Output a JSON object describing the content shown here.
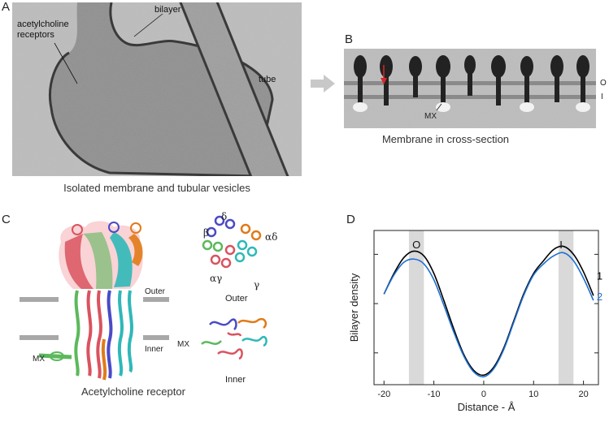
{
  "panels": {
    "a": {
      "label": "A",
      "annotations": {
        "receptors_line1": "acetylcholine",
        "receptors_line2": "receptors",
        "bilayer": "bilayer",
        "tube": "tube"
      },
      "caption": "Isolated membrane and tubular vesicles"
    },
    "b": {
      "label": "B",
      "annotations": {
        "outer": "O",
        "inner": "I",
        "mx": "MX"
      },
      "caption": "Membrane in cross-section"
    },
    "c": {
      "label": "C",
      "annotations": {
        "outer": "Outer",
        "inner": "Inner",
        "mx": "MX",
        "mx_inner": "MX"
      },
      "subunits": {
        "beta": "β",
        "delta": "δ",
        "alpha_delta": "αδ",
        "alpha_gamma": "αγ",
        "gamma": "γ"
      },
      "slice_labels": {
        "outer": "Outer",
        "inner": "Inner"
      },
      "caption": "Acetylcholine receptor"
    },
    "d": {
      "label": "D"
    }
  },
  "colors": {
    "arrow_gray": "#c8c8c8",
    "red_arrow": "#d62828",
    "series_1": "#000000",
    "series_2": "#1f6fd1",
    "shade": "#d9d9d9",
    "subunit_colors": [
      "#4a4ac8",
      "#e07b1a",
      "#2fb8b8",
      "#d9535f",
      "#5cb85c"
    ]
  },
  "chart_data": {
    "type": "line",
    "xlabel": "Distance - Å",
    "ylabel": "Bilayer density",
    "xlim": [
      -22,
      23
    ],
    "ylim": [
      0.15,
      1.12
    ],
    "xticks": [
      -20,
      -10,
      0,
      10,
      20
    ],
    "peak_labels": [
      {
        "text": "O",
        "x": -13.5
      },
      {
        "text": "I",
        "x": 15.5
      }
    ],
    "shaded_bands": [
      [
        -15,
        -12
      ],
      [
        15,
        18
      ]
    ],
    "series": [
      {
        "name": "1",
        "x": [
          -20,
          -18,
          -16,
          -14,
          -12,
          -10,
          -8,
          -6,
          -4,
          -2,
          0,
          2,
          4,
          6,
          8,
          10,
          12,
          14,
          16,
          18,
          20,
          22
        ],
        "y": [
          0.72,
          0.85,
          0.95,
          0.99,
          0.96,
          0.85,
          0.68,
          0.5,
          0.34,
          0.24,
          0.21,
          0.26,
          0.38,
          0.55,
          0.72,
          0.85,
          0.93,
          1.0,
          1.02,
          0.97,
          0.86,
          0.71
        ]
      },
      {
        "name": "2",
        "x": [
          -20,
          -18,
          -16,
          -14,
          -12,
          -10,
          -8,
          -6,
          -4,
          -2,
          0,
          2,
          4,
          6,
          8,
          10,
          12,
          14,
          16,
          18,
          20,
          22
        ],
        "y": [
          0.72,
          0.84,
          0.92,
          0.94,
          0.91,
          0.81,
          0.65,
          0.48,
          0.33,
          0.23,
          0.2,
          0.25,
          0.37,
          0.54,
          0.71,
          0.84,
          0.91,
          0.96,
          0.98,
          0.93,
          0.82,
          0.68
        ]
      }
    ]
  }
}
